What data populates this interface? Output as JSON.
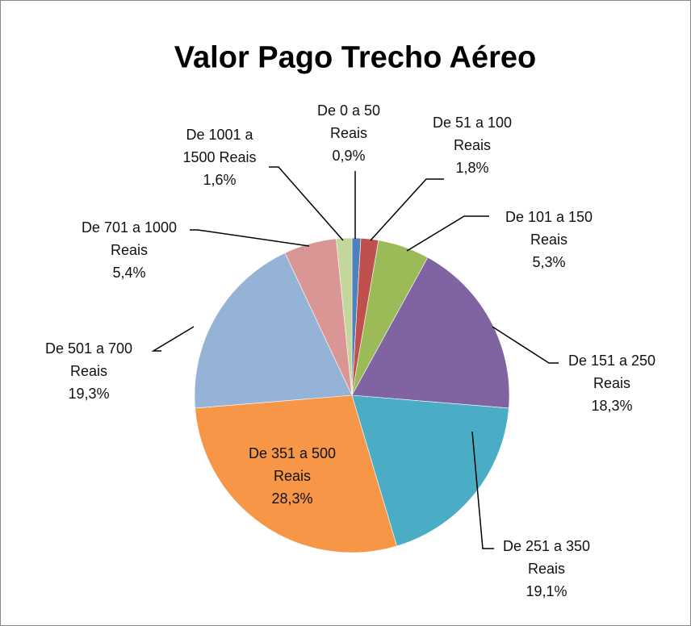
{
  "chart_data": {
    "type": "pie",
    "title": "Valor Pago Trecho Aéreo",
    "categories": [
      "De 0 a 50 Reais",
      "De 51 a 100 Reais",
      "De 101 a 150 Reais",
      "De 151 a 250 Reais",
      "De 251 a 350 Reais",
      "De 351 a 500 Reais",
      "De 501 a 700 Reais",
      "De 701 a 1000 Reais",
      "De 1001 a 1500 Reais"
    ],
    "values": [
      0.9,
      1.8,
      5.3,
      18.3,
      19.1,
      28.3,
      19.3,
      5.4,
      1.6
    ],
    "value_labels": [
      "0,9%",
      "1,8%",
      "5,3%",
      "18,3%",
      "19,1%",
      "28,3%",
      "19,3%",
      "5,4%",
      "1,6%"
    ],
    "colors": [
      "#4f81bd",
      "#c0504d",
      "#9bbb59",
      "#8064a2",
      "#4bacc6",
      "#f79646",
      "#95b3d7",
      "#d99694",
      "#c3d69b"
    ]
  }
}
